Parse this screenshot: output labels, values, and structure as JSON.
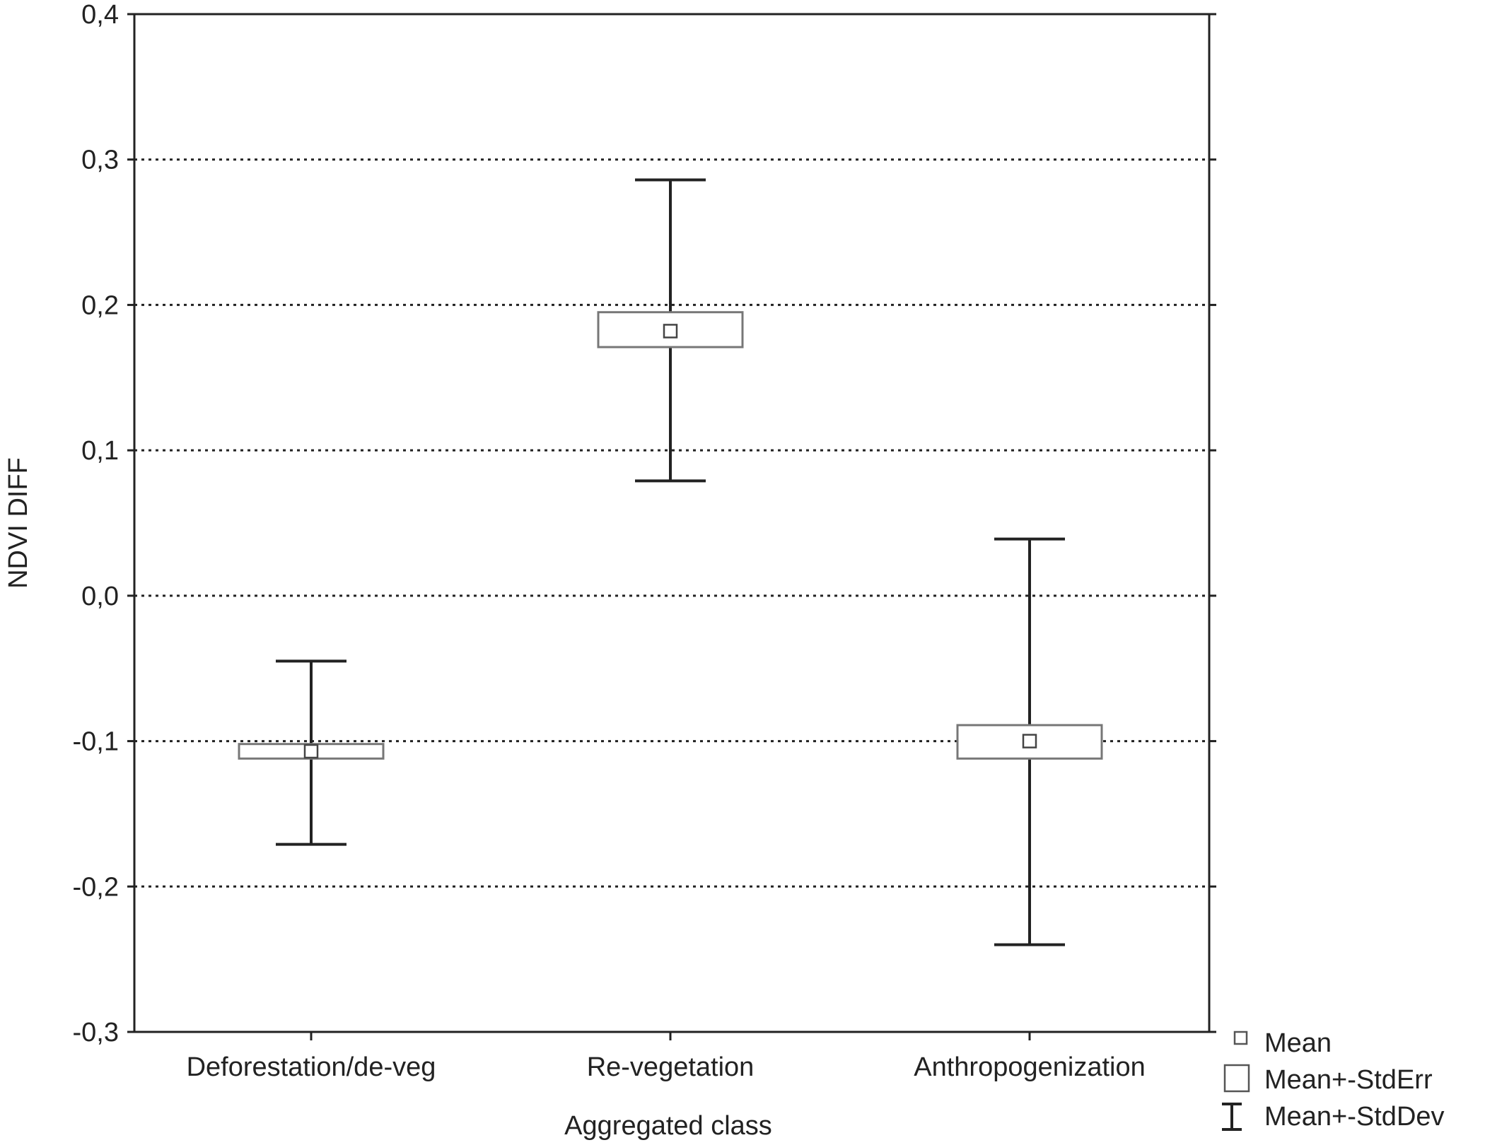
{
  "chart_data": {
    "type": "box",
    "categories": [
      "Deforestation/de-veg",
      "Re-vegetation",
      "Anthropogenization"
    ],
    "series": [
      {
        "name": "Mean",
        "values": [
          -0.107,
          0.182,
          -0.1
        ]
      },
      {
        "name": "Mean+-StdErr",
        "low": [
          -0.112,
          0.171,
          -0.112
        ],
        "high": [
          -0.102,
          0.195,
          -0.089
        ]
      },
      {
        "name": "Mean+-StdDev",
        "low": [
          -0.171,
          0.079,
          -0.24
        ],
        "high": [
          -0.045,
          0.286,
          0.039
        ]
      }
    ],
    "xlabel": "Aggregated class",
    "ylabel": "NDVI DIFF",
    "ylim": [
      -0.3,
      0.4
    ],
    "yticks": [
      -0.3,
      -0.2,
      -0.1,
      0.0,
      0.1,
      0.2,
      0.3,
      0.4
    ],
    "ytick_labels": [
      "-0,3",
      "-0,2",
      "-0,1",
      "0,0",
      "0,1",
      "0,2",
      "0,3",
      "0,4"
    ],
    "grid": "horizontal dotted",
    "legend": {
      "placement": "bottom-right",
      "entries": [
        "Mean",
        "Mean+-StdErr",
        "Mean+-StdDev"
      ]
    },
    "colors": {
      "axis": "#222222",
      "box_stroke": "#777777",
      "whisker": "#222222",
      "grid": "#222222"
    }
  }
}
